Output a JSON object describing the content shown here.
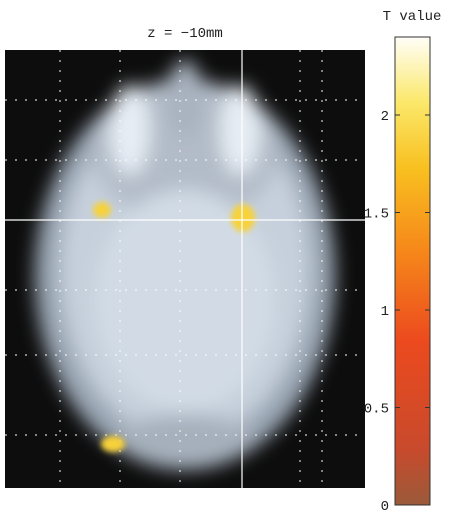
{
  "chart_data": {
    "type": "colorbar-image",
    "title": "z = −10mm",
    "colorbar_label": "T value",
    "ylim": [
      0,
      2.4
    ],
    "yticks": [
      0,
      0.5,
      1,
      1.5,
      2
    ]
  }
}
